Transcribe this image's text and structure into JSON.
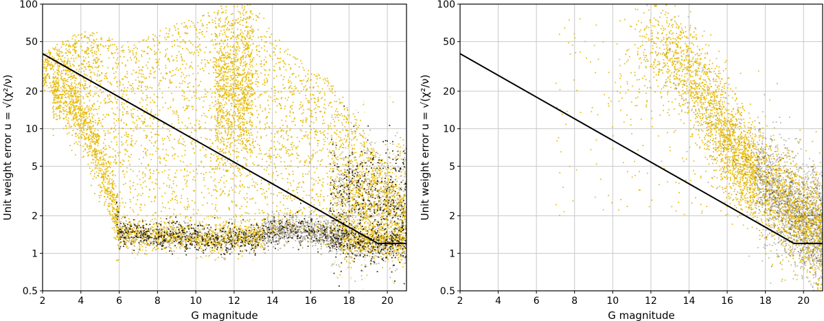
{
  "chart_data": [
    {
      "type": "scatter",
      "panel": "left",
      "xlabel": "G magnitude",
      "ylabel": "Unit weight error u = √(χ²/ν)",
      "xlim": [
        2,
        21
      ],
      "ylim": [
        0.5,
        100
      ],
      "yscale": "log",
      "grid": true,
      "x_ticks": [
        "2",
        "4",
        "6",
        "8",
        "10",
        "12",
        "14",
        "16",
        "18",
        "20"
      ],
      "y_ticks": [
        "0.5",
        "1",
        "2",
        "5",
        "10",
        "20",
        "50",
        "100"
      ],
      "point_color": "#e6b800",
      "density_color": "#1a1200",
      "line_color": "#000000",
      "cutoff_line": {
        "x": [
          2,
          19.5,
          21
        ],
        "y": [
          40,
          1.2,
          1.2
        ]
      },
      "density_profile": {
        "g": [
          2,
          3,
          4,
          5,
          6,
          7,
          8,
          9,
          10,
          11,
          12,
          13,
          14,
          15,
          16,
          17,
          18,
          19,
          20,
          21
        ],
        "u_median": [
          20,
          18,
          12,
          5,
          1.45,
          1.4,
          1.38,
          1.37,
          1.36,
          1.3,
          1.35,
          1.3,
          1.5,
          1.55,
          1.5,
          1.4,
          1.3,
          1.2,
          1.2,
          1.2
        ],
        "u_upper_envelope": [
          40,
          50,
          60,
          60,
          50,
          50,
          60,
          70,
          80,
          90,
          100,
          100,
          60,
          40,
          30,
          25,
          15,
          8,
          5,
          2
        ]
      }
    },
    {
      "type": "scatter",
      "panel": "right",
      "xlabel": "G magnitude",
      "ylabel": "Unit weight error u = √(χ²/ν)",
      "xlim": [
        2,
        21
      ],
      "ylim": [
        0.5,
        100
      ],
      "yscale": "log",
      "grid": true,
      "x_ticks": [
        "2",
        "4",
        "6",
        "8",
        "10",
        "12",
        "14",
        "16",
        "18",
        "20"
      ],
      "y_ticks": [
        "0.5",
        "1",
        "2",
        "5",
        "10",
        "20",
        "50",
        "100"
      ],
      "point_color": "#e6b800",
      "density_color": "#1a1200",
      "line_color": "#000000",
      "cutoff_line": {
        "x": [
          2,
          19.5,
          21
        ],
        "y": [
          40,
          1.2,
          1.2
        ]
      },
      "density_profile": {
        "g": [
          10,
          11,
          12,
          13,
          14,
          15,
          16,
          17,
          18,
          19,
          20,
          21
        ],
        "u_center": [
          20,
          30,
          50,
          40,
          25,
          15,
          8,
          5,
          3.5,
          2.5,
          1.8,
          1.4
        ]
      }
    }
  ]
}
